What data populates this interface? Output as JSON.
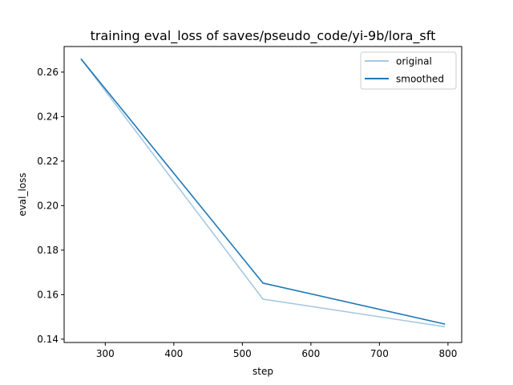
{
  "chart_data": {
    "type": "line",
    "title": "training eval_loss of saves/pseudo_code/yi-9b/lora_sft",
    "xlabel": "step",
    "ylabel": "eval_loss",
    "xlim": [
      240,
      820
    ],
    "ylim": [
      0.1385,
      0.2715
    ],
    "x_ticks": [
      300,
      400,
      500,
      600,
      700,
      800
    ],
    "y_ticks": [
      0.14,
      0.16,
      0.18,
      0.2,
      0.22,
      0.24,
      0.26
    ],
    "y_tick_labels": [
      "0.14",
      "0.16",
      "0.18",
      "0.20",
      "0.22",
      "0.24",
      "0.26"
    ],
    "grid": false,
    "legend_position": "top-right",
    "series": [
      {
        "name": "original",
        "color": "#a6c9e2",
        "x": [
          265,
          530,
          795
        ],
        "y": [
          0.2658,
          0.158,
          0.1456
        ]
      },
      {
        "name": "smoothed",
        "color": "#1f77b4",
        "x": [
          265,
          530,
          795
        ],
        "y": [
          0.2658,
          0.1652,
          0.1468
        ]
      }
    ]
  }
}
